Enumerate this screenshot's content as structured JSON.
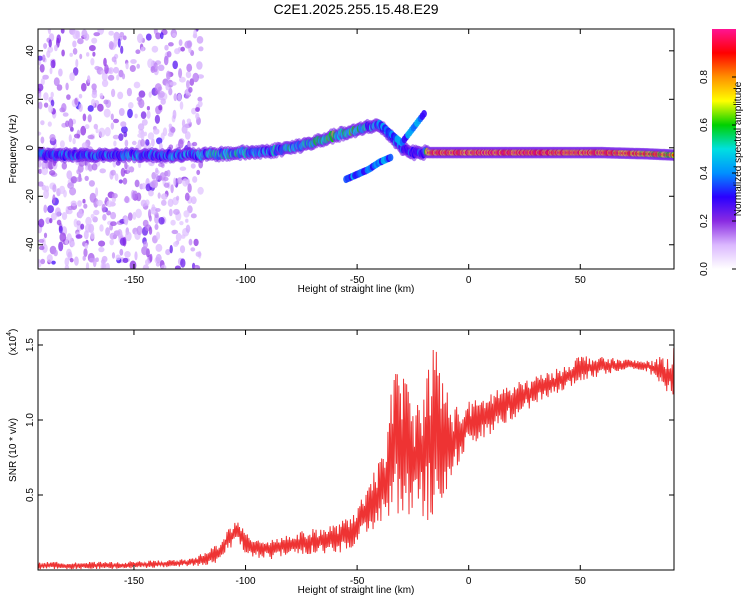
{
  "figure": {
    "title": "C2E1.2025.255.15.48.E29"
  },
  "chart_data": [
    {
      "type": "heatmap",
      "title": "C2E1.2025.255.15.48.E29",
      "xlabel": "Height of straight line (km)",
      "ylabel": "Frequency (Hz)",
      "xlim": [
        -193,
        92
      ],
      "ylim": [
        -50,
        49
      ],
      "xticks": [
        -150,
        -100,
        -50,
        0,
        50
      ],
      "yticks": [
        -40,
        -20,
        0,
        20,
        40
      ],
      "colorbar": {
        "label": "Normalized spectral amplitude",
        "range": [
          0,
          1
        ],
        "ticks": [
          "0.0",
          "0.2",
          "0.4",
          "0.6",
          "0.8"
        ],
        "tick_values": [
          0.0,
          0.2,
          0.4,
          0.6,
          0.8
        ],
        "colors": [
          "#ffffff",
          "#dbb8ff",
          "#8a2be2",
          "#2a00ff",
          "#0090ff",
          "#00e0e0",
          "#00d000",
          "#ffff00",
          "#ff9000",
          "#ff0000",
          "#ff1493"
        ]
      },
      "ridge": {
        "x": [
          -193,
          -160,
          -130,
          -120,
          -110,
          -100,
          -90,
          -80,
          -70,
          -60,
          -50,
          -45,
          -40,
          -35,
          -30,
          -25,
          -20,
          -18,
          0,
          20,
          40,
          60,
          80,
          92
        ],
        "frequency": [
          -3,
          -3,
          -3,
          -3,
          -2.5,
          -2,
          -1.5,
          0,
          2,
          5,
          7,
          9,
          9,
          5,
          0,
          -2,
          -2,
          -2,
          -2,
          -2,
          -2,
          -2,
          -2.5,
          -3
        ],
        "amplitude": [
          0.45,
          0.5,
          0.5,
          0.55,
          0.6,
          0.6,
          0.55,
          0.6,
          0.6,
          0.7,
          0.65,
          0.55,
          0.5,
          0.5,
          0.45,
          0.4,
          0.45,
          0.95,
          0.97,
          0.97,
          0.95,
          0.95,
          0.9,
          0.85
        ]
      },
      "noise_region_x": [
        -193,
        -120
      ],
      "branches": [
        {
          "x": [
            -40,
            -35,
            -30,
            -25,
            -20
          ],
          "frequency": [
            10,
            6,
            2,
            8,
            14
          ]
        },
        {
          "x": [
            -55,
            -50,
            -45,
            -40,
            -35
          ],
          "frequency": [
            -13,
            -11,
            -9,
            -6,
            -4
          ]
        }
      ]
    },
    {
      "type": "line",
      "title": "",
      "xlabel": "Height of straight line (km)",
      "ylabel": "SNR (10 * v/v)",
      "scale_label": "(x10",
      "scale_exponent": "4",
      "xlim": [
        -193,
        92
      ],
      "ylim": [
        0,
        1.6
      ],
      "xticks": [
        -150,
        -100,
        -50,
        0,
        50
      ],
      "yticks": [
        0.5,
        1.0,
        1.5
      ],
      "ytick_labels": [
        "0.5",
        "1.0",
        "1.5"
      ],
      "color": "#ee3333",
      "series": [
        {
          "name": "SNR",
          "x": [
            -193,
            -180,
            -160,
            -140,
            -125,
            -118,
            -112,
            -108,
            -104,
            -100,
            -95,
            -90,
            -80,
            -70,
            -60,
            -55,
            -50,
            -45,
            -40,
            -37,
            -34,
            -31,
            -28,
            -25,
            -22,
            -20,
            -18,
            -15,
            -13,
            -10,
            -7,
            -4,
            0,
            5,
            10,
            15,
            20,
            30,
            40,
            45,
            50,
            60,
            70,
            80,
            85,
            88,
            90,
            92
          ],
          "y": [
            0.03,
            0.03,
            0.03,
            0.04,
            0.05,
            0.07,
            0.12,
            0.2,
            0.26,
            0.18,
            0.15,
            0.14,
            0.17,
            0.19,
            0.21,
            0.23,
            0.3,
            0.4,
            0.5,
            0.62,
            0.78,
            0.9,
            0.8,
            0.7,
            0.75,
            0.8,
            0.85,
            0.95,
            0.9,
            0.85,
            0.85,
            0.9,
            0.98,
            1.0,
            1.05,
            1.1,
            1.12,
            1.2,
            1.26,
            1.3,
            1.34,
            1.36,
            1.37,
            1.36,
            1.33,
            1.31,
            1.3,
            1.32
          ]
        }
      ],
      "noise_envelope": {
        "x": [
          -193,
          -125,
          -112,
          -100,
          -80,
          -60,
          -45,
          -38,
          -34,
          -31,
          -28,
          -25,
          -22,
          -18,
          -15,
          -12,
          -8,
          -4,
          0,
          10,
          20,
          30,
          40,
          50,
          60,
          70,
          80,
          88,
          92
        ],
        "amplitude": [
          0.02,
          0.02,
          0.06,
          0.06,
          0.06,
          0.08,
          0.12,
          0.25,
          0.4,
          0.45,
          0.4,
          0.35,
          0.35,
          0.45,
          0.5,
          0.4,
          0.25,
          0.15,
          0.12,
          0.12,
          0.1,
          0.08,
          0.07,
          0.08,
          0.05,
          0.03,
          0.03,
          0.1,
          0.15
        ]
      }
    }
  ]
}
